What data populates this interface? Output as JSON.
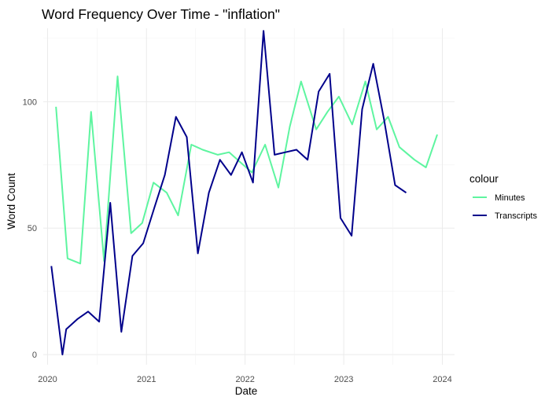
{
  "chart_data": {
    "type": "line",
    "title": "Word Frequency Over Time - \"inflation\"",
    "xlabel": "Date",
    "ylabel": "Word Count",
    "x_ticks": [
      "2020",
      "2021",
      "2022",
      "2023",
      "2024"
    ],
    "y_ticks": [
      "0",
      "50",
      "100"
    ],
    "ylim": [
      -4,
      129
    ],
    "xlim": [
      "2019-12-16",
      "2024-02-15"
    ],
    "grid": true,
    "legend": {
      "title": "colour",
      "placement": "right"
    },
    "series": [
      {
        "name": "Minutes",
        "color": "#5ef5a0",
        "points": [
          [
            "2020-02-01",
            98
          ],
          [
            "2020-03-15",
            38
          ],
          [
            "2020-05-01",
            36
          ],
          [
            "2020-06-10",
            96
          ],
          [
            "2020-07-28",
            37
          ],
          [
            "2020-09-16",
            110
          ],
          [
            "2020-11-05",
            48
          ],
          [
            "2020-12-16",
            52
          ],
          [
            "2021-01-27",
            68
          ],
          [
            "2021-03-17",
            64
          ],
          [
            "2021-04-28",
            55
          ],
          [
            "2021-06-16",
            83
          ],
          [
            "2021-07-28",
            81
          ],
          [
            "2021-09-22",
            79
          ],
          [
            "2021-11-03",
            80
          ],
          [
            "2021-12-15",
            76
          ],
          [
            "2022-01-26",
            72
          ],
          [
            "2022-03-16",
            83
          ],
          [
            "2022-05-04",
            66
          ],
          [
            "2022-06-15",
            90
          ],
          [
            "2022-07-27",
            108
          ],
          [
            "2022-09-21",
            89
          ],
          [
            "2022-11-02",
            96
          ],
          [
            "2022-12-14",
            102
          ],
          [
            "2023-02-01",
            91
          ],
          [
            "2023-03-22",
            108
          ],
          [
            "2023-05-03",
            89
          ],
          [
            "2023-06-14",
            94
          ],
          [
            "2023-07-26",
            82
          ],
          [
            "2023-09-20",
            77
          ],
          [
            "2023-11-01",
            74
          ],
          [
            "2023-12-13",
            87
          ]
        ]
      },
      {
        "name": "Transcripts",
        "color": "#00008b",
        "points": [
          [
            "2020-01-15",
            35
          ],
          [
            "2020-02-25",
            0
          ],
          [
            "2020-03-10",
            10
          ],
          [
            "2020-04-20",
            14
          ],
          [
            "2020-05-30",
            17
          ],
          [
            "2020-07-10",
            13
          ],
          [
            "2020-08-20",
            60
          ],
          [
            "2020-09-30",
            9
          ],
          [
            "2020-11-10",
            39
          ],
          [
            "2020-12-20",
            44
          ],
          [
            "2021-01-30",
            58
          ],
          [
            "2021-03-10",
            71
          ],
          [
            "2021-04-20",
            94
          ],
          [
            "2021-05-30",
            86
          ],
          [
            "2021-07-10",
            40
          ],
          [
            "2021-08-20",
            64
          ],
          [
            "2021-09-30",
            77
          ],
          [
            "2021-11-10",
            71
          ],
          [
            "2021-12-20",
            80
          ],
          [
            "2022-01-30",
            68
          ],
          [
            "2022-03-10",
            128
          ],
          [
            "2022-04-20",
            79
          ],
          [
            "2022-05-30",
            80
          ],
          [
            "2022-07-10",
            81
          ],
          [
            "2022-08-20",
            77
          ],
          [
            "2022-09-30",
            104
          ],
          [
            "2022-11-10",
            111
          ],
          [
            "2022-12-20",
            54
          ],
          [
            "2023-01-30",
            47
          ],
          [
            "2023-03-10",
            97
          ],
          [
            "2023-04-20",
            115
          ],
          [
            "2023-05-30",
            93
          ],
          [
            "2023-07-10",
            67
          ],
          [
            "2023-08-20",
            64
          ]
        ]
      }
    ]
  }
}
